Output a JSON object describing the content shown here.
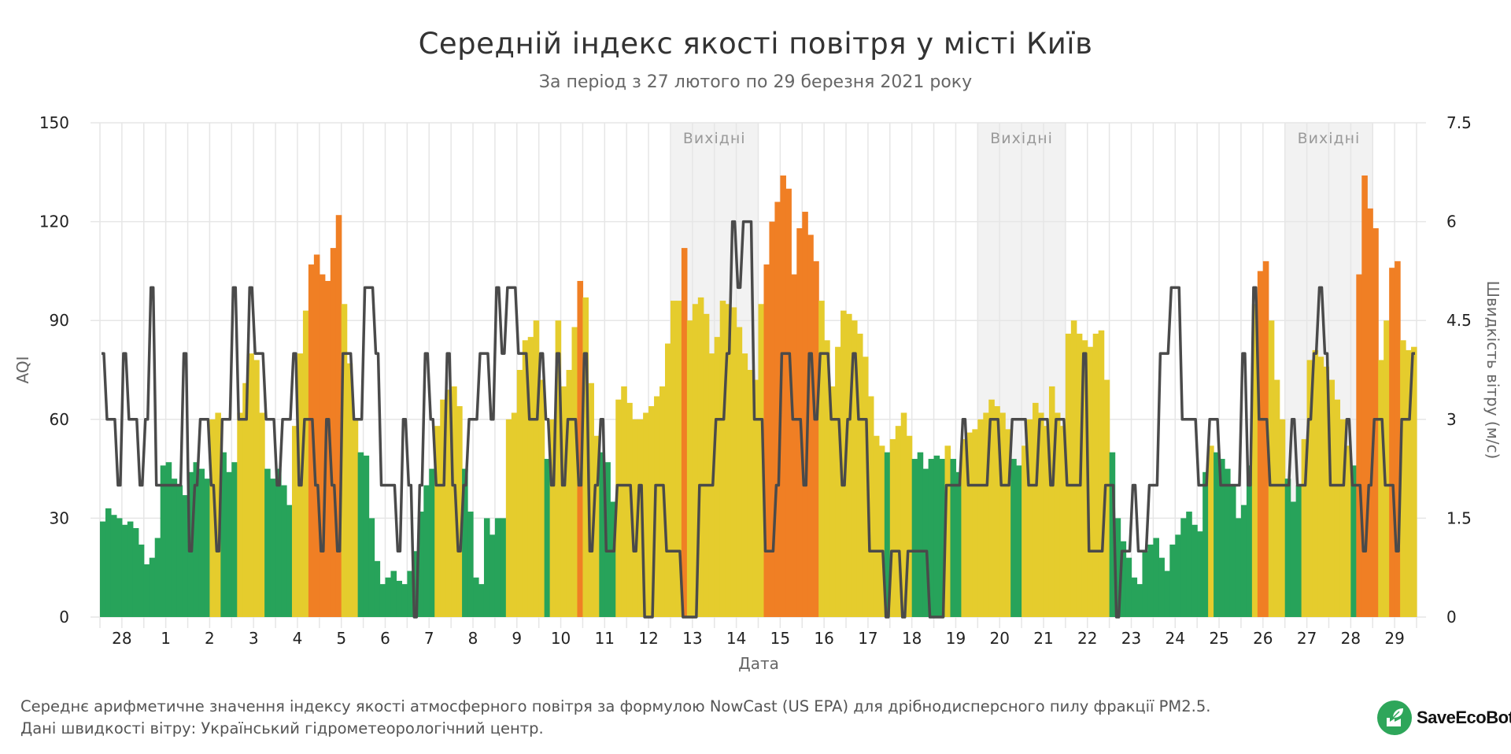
{
  "header": {
    "title": "Середній індекс якості повітря у місті Київ",
    "subtitle": "За період з 27 лютого по 29 березня 2021 року"
  },
  "footer": {
    "line1": "Середнє арифметичне значення індексу якості атмосферного повітря за формулою NowCast (US EPA) для дрібнодисперсного пилу фракції PM2.5.",
    "line2": "Дані швидкості вітру: Український гідрометеорологічний центр."
  },
  "logo": {
    "text": "SaveEcoBot",
    "icon": "factory-leaf-icon"
  },
  "colors": {
    "good": "#27a35a",
    "moderate": "#e5cc2d",
    "unhealthy_sensitive": "#f07f24",
    "wind_line": "#4a4a4a",
    "weekend_band": "#f2f2f2",
    "grid": "#e6e6e6"
  },
  "chart_data": {
    "type": "bar",
    "title": "Середній індекс якості повітря у місті Київ",
    "subtitle": "За період з 27 лютого по 29 березня 2021 року",
    "xlabel": "Дата",
    "ylabel": "AQI",
    "y2label": "Швидкість вітру (м/с)",
    "ylim": [
      0,
      150
    ],
    "y2lim": [
      0,
      7.5
    ],
    "yticks": [
      "0",
      "30",
      "60",
      "90",
      "120",
      "150"
    ],
    "y2ticks": [
      "0",
      "1.5",
      "3",
      "4.5",
      "6",
      "7.5"
    ],
    "grid": true,
    "xtick_labels": [
      "28",
      "1",
      "2",
      "3",
      "4",
      "5",
      "6",
      "7",
      "8",
      "9",
      "10",
      "11",
      "12",
      "13",
      "14",
      "15",
      "16",
      "17",
      "18",
      "19",
      "20",
      "21",
      "22",
      "23",
      "24",
      "25",
      "26",
      "27",
      "28",
      "29"
    ],
    "resolution_hours": 3,
    "color_thresholds": {
      "good_max": 50,
      "moderate_max": 100
    },
    "weekend_bands": [
      {
        "label": "Вихідні",
        "start_day": 13,
        "end_day": 15
      },
      {
        "label": "Вихідні",
        "start_day": 20,
        "end_day": 22
      },
      {
        "label": "Вихідні",
        "start_day": 27,
        "end_day": 29
      }
    ],
    "series": [
      {
        "name": "AQI",
        "type": "bar",
        "values": [
          29,
          33,
          31,
          30,
          28,
          29,
          27,
          22,
          16,
          18,
          24,
          46,
          47,
          42,
          40,
          37,
          44,
          47,
          45,
          42,
          60,
          62,
          50,
          44,
          47,
          62,
          71,
          80,
          78,
          62,
          45,
          42,
          45,
          40,
          34,
          58,
          80,
          93,
          107,
          110,
          104,
          102,
          112,
          122,
          95,
          77,
          60,
          50,
          49,
          30,
          17,
          10,
          12,
          14,
          11,
          10,
          14,
          20,
          32,
          40,
          45,
          58,
          66,
          69,
          70,
          64,
          45,
          32,
          12,
          10,
          30,
          25,
          30,
          30,
          60,
          62,
          75,
          84,
          85,
          90,
          72,
          48,
          60,
          90,
          70,
          75,
          88,
          102,
          97,
          71,
          55,
          50,
          47,
          35,
          66,
          70,
          65,
          60,
          60,
          62,
          64,
          67,
          70,
          83,
          96,
          96,
          112,
          90,
          95,
          97,
          92,
          80,
          85,
          96,
          95,
          94,
          88,
          80,
          75,
          72,
          95,
          107,
          120,
          126,
          134,
          130,
          104,
          118,
          123,
          116,
          108,
          96,
          84,
          70,
          82,
          93,
          92,
          90,
          86,
          79,
          67,
          55,
          52,
          50,
          54,
          58,
          62,
          55,
          48,
          50,
          45,
          48,
          49,
          48,
          52,
          48,
          44,
          54,
          56,
          57,
          60,
          62,
          66,
          64,
          62,
          57,
          48,
          46,
          52,
          60,
          65,
          62,
          58,
          70,
          62,
          58,
          86,
          90,
          86,
          84,
          82,
          86,
          87,
          72,
          50,
          30,
          23,
          18,
          12,
          10,
          20,
          22,
          24,
          18,
          14,
          22,
          25,
          30,
          32,
          28,
          26,
          44,
          52,
          50,
          48,
          45,
          40,
          30,
          34,
          46,
          95,
          105,
          108,
          90,
          72,
          60,
          42,
          35,
          40,
          54,
          78,
          81,
          79,
          76,
          72,
          66,
          60,
          52,
          46,
          104,
          134,
          124,
          118,
          78,
          90,
          106,
          108,
          84,
          81,
          82
        ]
      },
      {
        "name": "Швидкість вітру (м/с)",
        "type": "step-line",
        "axis": "right",
        "values": [
          4,
          3,
          3,
          2,
          4,
          3,
          3,
          2,
          3,
          5,
          2,
          2,
          2,
          2,
          2,
          4,
          1,
          2,
          3,
          3,
          2,
          1,
          3,
          3,
          5,
          3,
          3,
          5,
          4,
          4,
          3,
          3,
          2,
          3,
          3,
          4,
          2,
          3,
          3,
          2,
          1,
          3,
          2,
          1,
          4,
          4,
          3,
          3,
          5,
          5,
          4,
          2,
          2,
          2,
          1,
          3,
          2,
          0,
          2,
          4,
          3,
          2,
          2,
          4,
          2,
          1,
          2,
          3,
          3,
          4,
          4,
          3,
          5,
          4,
          5,
          5,
          4,
          4,
          3,
          3,
          4,
          3,
          2,
          4,
          2,
          3,
          3,
          2,
          4,
          1,
          2,
          3,
          1,
          1,
          2,
          2,
          2,
          1,
          2,
          0,
          0,
          2,
          2,
          1,
          1,
          1,
          0,
          0,
          0,
          2,
          2,
          2,
          3,
          3,
          4,
          6,
          5,
          6,
          6,
          3,
          3,
          1,
          1,
          2,
          4,
          4,
          3,
          3,
          2,
          4,
          3,
          4,
          4,
          3,
          3,
          2,
          3,
          4,
          3,
          3,
          1,
          1,
          1,
          0,
          1,
          1,
          0,
          1,
          1,
          1,
          1,
          0,
          0,
          0,
          2,
          2,
          2,
          3,
          2,
          2,
          2,
          2,
          3,
          3,
          2,
          2,
          3,
          3,
          3,
          2,
          2,
          3,
          3,
          2,
          3,
          3,
          2,
          2,
          2,
          4,
          1,
          1,
          1,
          2,
          2,
          0,
          1,
          1,
          2,
          1,
          1,
          2,
          2,
          4,
          4,
          5,
          5,
          3,
          3,
          3,
          2,
          2,
          3,
          3,
          2,
          2,
          2,
          2,
          4,
          2,
          5,
          3,
          3,
          2,
          2,
          2,
          2,
          3,
          2,
          2,
          3,
          4,
          5,
          4,
          2,
          2,
          2,
          3,
          2,
          2,
          1,
          2,
          3,
          3,
          2,
          2,
          1,
          3,
          3,
          4
        ]
      }
    ]
  }
}
